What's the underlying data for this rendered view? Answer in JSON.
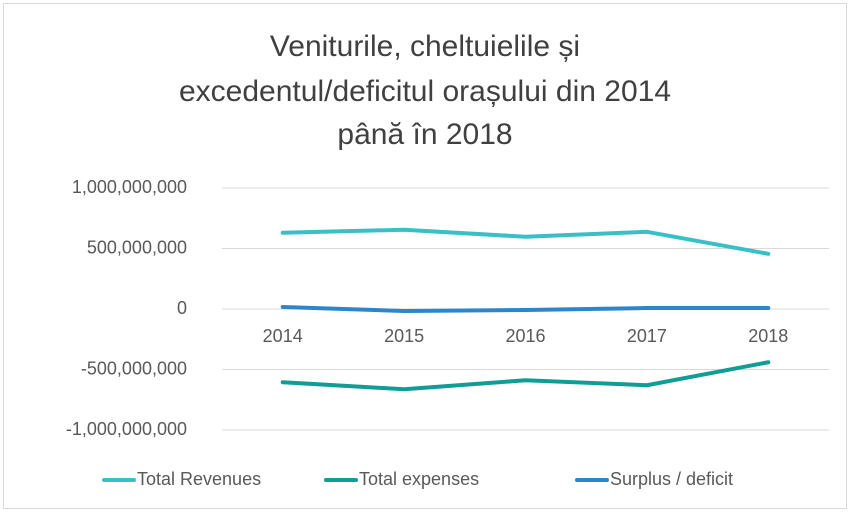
{
  "chart_data": {
    "type": "line",
    "title": [
      "Veniturile, cheltuielile și",
      "excedentul/deficitul orașului din 2014",
      "până în 2018"
    ],
    "categories": [
      "2014",
      "2015",
      "2016",
      "2017",
      "2018"
    ],
    "series": [
      {
        "name": "Total Revenues",
        "color": "#3bbfc6",
        "values": [
          630000000,
          655000000,
          597000000,
          638000000,
          456000000
        ]
      },
      {
        "name": "Total expenses",
        "color": "#119c96",
        "values": [
          -605000000,
          -663000000,
          -589000000,
          -630000000,
          -440000000
        ]
      },
      {
        "name": "Surplus / deficit",
        "color": "#2e86c8",
        "values": [
          17000000,
          -17000000,
          -8000000,
          8000000,
          8000000
        ]
      }
    ],
    "ylim": [
      -1000000000,
      1000000000
    ],
    "yticks": [
      {
        "value": -1000000000,
        "label": "-1,000,000,000"
      },
      {
        "value": -500000000,
        "label": "-500,000,000"
      },
      0,
      {
        "value": 500000000,
        "label": "500,000,000"
      },
      {
        "value": 1000000000,
        "label": "1,000,000,000"
      }
    ],
    "grid": true,
    "legend": "bottom"
  }
}
